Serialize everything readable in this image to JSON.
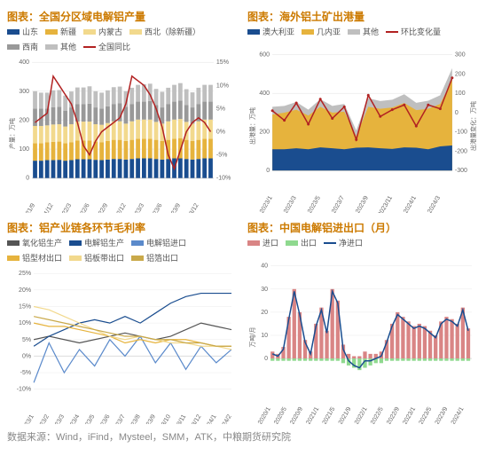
{
  "source_label": "数据来源：Wind，iFind，Mysteel，SMM，ATK，中粮期货研究院",
  "panels": {
    "p1": {
      "title": "图表：全国分区域电解铝产量",
      "type": "stacked-bar-with-line",
      "series": [
        {
          "name": "山东",
          "color": "#1a4d8f"
        },
        {
          "name": "新疆",
          "color": "#e6b33d"
        },
        {
          "name": "内蒙古",
          "color": "#f2d98d"
        },
        {
          "name": "西北（除新疆）",
          "color": "#f2d98d"
        },
        {
          "name": "西南",
          "color": "#999999"
        },
        {
          "name": "其他",
          "color": "#bfbfbf"
        },
        {
          "name": "全国同比",
          "color": "#b22222",
          "type": "line"
        }
      ],
      "ylabel_left": "产量：万吨",
      "ylim_left": [
        0,
        400
      ],
      "ytick_left": [
        0,
        100,
        200,
        300,
        400
      ],
      "ylim_right": [
        -10,
        15
      ],
      "ytick_right": [
        -10,
        -5,
        0,
        5,
        10,
        15
      ],
      "yfmt_right": "%",
      "categories": [
        "2021/9",
        "2021/12",
        "2022/3",
        "2022/6",
        "2022/9",
        "2022/12",
        "2023/3",
        "2023/6",
        "2023/9",
        "2023/12"
      ],
      "stacks": [
        [
          60,
          60,
          60,
          60,
          60
        ],
        [
          60,
          60,
          60,
          60,
          55
        ],
        [
          62,
          62,
          58,
          58,
          55
        ],
        [
          62,
          63,
          60,
          60,
          58
        ],
        [
          63,
          63,
          60,
          60,
          58
        ],
        [
          60,
          60,
          58,
          55,
          52
        ],
        [
          62,
          62,
          62,
          58,
          55
        ],
        [
          65,
          65,
          65,
          60,
          58
        ],
        [
          65,
          65,
          65,
          60,
          58
        ],
        [
          65,
          65,
          65,
          62,
          60
        ],
        [
          63,
          63,
          60,
          58,
          56
        ],
        [
          62,
          62,
          60,
          56,
          55
        ],
        [
          64,
          64,
          62,
          58,
          55
        ],
        [
          66,
          66,
          64,
          60,
          58
        ],
        [
          66,
          66,
          64,
          62,
          58
        ],
        [
          64,
          64,
          60,
          58,
          54
        ],
        [
          66,
          66,
          64,
          60,
          56
        ],
        [
          68,
          68,
          66,
          62,
          58
        ],
        [
          68,
          68,
          66,
          62,
          60
        ],
        [
          68,
          68,
          66,
          64,
          60
        ],
        [
          66,
          66,
          62,
          58,
          56
        ],
        [
          64,
          64,
          60,
          56,
          54
        ],
        [
          66,
          66,
          64,
          60,
          56
        ],
        [
          68,
          68,
          66,
          62,
          58
        ],
        [
          68,
          70,
          66,
          64,
          60
        ],
        [
          66,
          66,
          62,
          58,
          55
        ],
        [
          64,
          64,
          60,
          56,
          52
        ],
        [
          66,
          66,
          64,
          60,
          56
        ],
        [
          68,
          68,
          66,
          62,
          58
        ],
        [
          68,
          68,
          66,
          62,
          58
        ]
      ],
      "line": [
        2,
        3,
        4,
        12,
        10,
        8,
        6,
        2,
        -3,
        -5,
        -2,
        0,
        1,
        2,
        3,
        6,
        12,
        11,
        10,
        8,
        5,
        1,
        -5,
        -8,
        -4,
        0,
        2,
        3,
        2,
        0
      ],
      "stack_colors": [
        "#1a4d8f",
        "#e6b33d",
        "#f2d98d",
        "#999999",
        "#bfbfbf"
      ],
      "line_color": "#b22222"
    },
    "p2": {
      "title": "图表：海外铝土矿出港量",
      "type": "stacked-area-with-line",
      "series": [
        {
          "name": "澳大利亚",
          "color": "#1a4d8f"
        },
        {
          "name": "几内亚",
          "color": "#e6b33d"
        },
        {
          "name": "其他",
          "color": "#bfbfbf"
        },
        {
          "name": "环比变化量",
          "color": "#b22222",
          "type": "line"
        }
      ],
      "ylabel_left": "出港量：万吨",
      "ylabel_right": "出港量变化：万吨",
      "ylim_left": [
        0,
        600
      ],
      "ytick_left": [
        0,
        200,
        400,
        600
      ],
      "ylim_right": [
        -300,
        300
      ],
      "ytick_right": [
        -300,
        -200,
        -100,
        0,
        100,
        200,
        300
      ],
      "categories": [
        "2023/1",
        "2023/3",
        "2023/5",
        "2023/7",
        "2023/9",
        "2023/11",
        "2024/1",
        "2024/3"
      ],
      "area": [
        [
          110,
          180,
          40
        ],
        [
          110,
          190,
          35
        ],
        [
          115,
          200,
          40
        ],
        [
          110,
          175,
          30
        ],
        [
          120,
          210,
          40
        ],
        [
          115,
          185,
          35
        ],
        [
          110,
          195,
          40
        ],
        [
          118,
          60,
          30
        ],
        [
          120,
          210,
          45
        ],
        [
          115,
          205,
          40
        ],
        [
          112,
          215,
          40
        ],
        [
          120,
          230,
          45
        ],
        [
          118,
          195,
          38
        ],
        [
          110,
          210,
          42
        ],
        [
          125,
          220,
          45
        ],
        [
          130,
          340,
          60
        ]
      ],
      "line": [
        10,
        -40,
        50,
        -60,
        70,
        -30,
        30,
        -140,
        90,
        -20,
        15,
        40,
        -70,
        40,
        20,
        180
      ],
      "area_colors": [
        "#1a4d8f",
        "#e6b33d",
        "#bfbfbf"
      ],
      "line_color": "#b22222"
    },
    "p3": {
      "title": "图表：铝产业链各环节毛利率",
      "type": "multi-line",
      "series": [
        {
          "name": "氧化铝生产",
          "color": "#555555"
        },
        {
          "name": "电解铝生产",
          "color": "#1a4d8f"
        },
        {
          "name": "电解铝进口",
          "color": "#5b8acb"
        },
        {
          "name": "铝型材出口",
          "color": "#e6b33d"
        },
        {
          "name": "铝板带出口",
          "color": "#f2d98d"
        },
        {
          "name": "铝箔出口",
          "color": "#c9a94a"
        }
      ],
      "ylim": [
        -10,
        25
      ],
      "ytick": [
        -10,
        -5,
        0,
        5,
        10,
        15,
        20,
        25
      ],
      "yfmt": "%",
      "categories": [
        "2023/1",
        "2023/2",
        "2023/3",
        "2023/4",
        "2023/5",
        "2023/6",
        "2023/7",
        "2023/8",
        "2023/9",
        "2023/10",
        "2023/11",
        "2023/12",
        "2024/1",
        "2024/2"
      ],
      "lines": {
        "氧化铝生产": [
          5,
          6,
          5,
          4,
          5,
          6,
          7,
          6,
          5,
          6,
          8,
          10,
          9,
          8
        ],
        "电解铝生产": [
          3,
          6,
          8,
          10,
          11,
          10,
          12,
          10,
          13,
          16,
          18,
          19,
          19,
          19
        ],
        "电解铝进口": [
          -8,
          4,
          -5,
          2,
          -3,
          5,
          0,
          6,
          -2,
          4,
          -4,
          3,
          -2,
          2
        ],
        "铝型材出口": [
          10,
          9,
          9,
          8,
          7,
          6,
          4,
          5,
          4,
          5,
          5,
          4,
          3,
          3
        ],
        "铝板带出口": [
          15,
          14,
          12,
          10,
          8,
          6,
          5,
          6,
          5,
          4,
          4,
          3,
          3,
          2
        ],
        "铝箔出口": [
          12,
          11,
          10,
          9,
          8,
          7,
          6,
          6,
          5,
          5,
          4,
          4,
          3,
          3
        ]
      }
    },
    "p4": {
      "title": "图表：中国电解铝进出口（月）",
      "type": "bar-bar-line",
      "series": [
        {
          "name": "进口",
          "color": "#d98585"
        },
        {
          "name": "出口",
          "color": "#8fd98f"
        },
        {
          "name": "净进口",
          "color": "#1a4d8f",
          "type": "line"
        }
      ],
      "ylabel_left": "万吨/月",
      "ylim": [
        -10,
        40
      ],
      "ytick": [
        0,
        10,
        20,
        30,
        40
      ],
      "categories": [
        "2020/1",
        "2020/3",
        "2020/5",
        "2020/7",
        "2020/9",
        "2020/11",
        "2021/1",
        "2021/3",
        "2021/5",
        "2021/7",
        "2021/9",
        "2021/11",
        "2022/1",
        "2022/3",
        "2022/5",
        "2022/7",
        "2022/9",
        "2022/11",
        "2023/1",
        "2023/3",
        "2023/5",
        "2023/7",
        "2023/9",
        "2023/11",
        "2024/1"
      ],
      "imports": [
        3,
        2,
        5,
        18,
        30,
        20,
        8,
        3,
        15,
        22,
        12,
        30,
        25,
        6,
        2,
        1,
        1,
        3,
        2,
        2,
        3,
        8,
        15,
        20,
        18,
        16,
        14,
        15,
        14,
        12,
        10,
        16,
        18,
        17,
        15,
        22,
        13
      ],
      "exports": [
        1,
        1,
        1,
        1,
        1,
        1,
        1,
        1,
        1,
        1,
        1,
        1,
        1,
        2,
        3,
        4,
        5,
        4,
        3,
        2,
        2,
        1,
        1,
        1,
        1,
        1,
        1,
        1,
        1,
        1,
        1,
        1,
        1,
        1,
        1,
        1,
        1
      ],
      "net": [
        2,
        1,
        4,
        17,
        29,
        19,
        7,
        2,
        14,
        21,
        11,
        29,
        24,
        4,
        -1,
        -3,
        -4,
        -1,
        -1,
        0,
        1,
        7,
        14,
        19,
        17,
        15,
        13,
        14,
        13,
        11,
        9,
        15,
        17,
        16,
        14,
        21,
        12
      ]
    }
  }
}
